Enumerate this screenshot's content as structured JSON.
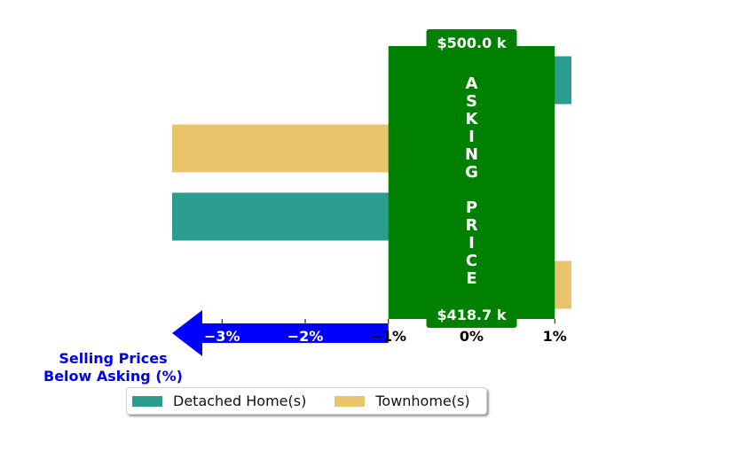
{
  "colors": {
    "detached": "#2a9d8f",
    "townhome": "#e9c46a",
    "asking_box": "#008000",
    "arrow": "#0000ff",
    "annotation_text": "#0000ee"
  },
  "chart_data": {
    "type": "bar",
    "orientation": "horizontal",
    "categories": [
      "",
      "",
      "",
      ""
    ],
    "series": [
      {
        "name": "Detached Home(s)",
        "values": [
          1.2,
          null,
          -3.6,
          null
        ]
      },
      {
        "name": "Townhome(s)",
        "values": [
          null,
          -3.6,
          null,
          1.2
        ]
      }
    ],
    "xlim": [
      -3.6,
      1.2
    ],
    "xticks": [
      -3,
      -2,
      -1,
      0,
      1
    ],
    "xtick_labels": [
      "−3%",
      "−2%",
      "−1%",
      "0%",
      "1%"
    ],
    "xlabel_lines": [
      "Selling Prices",
      "Below Asking (%)"
    ],
    "asking_box": {
      "letters": [
        "A",
        "S",
        "K",
        "I",
        "N",
        "G",
        "",
        "P",
        "R",
        "I",
        "C",
        "E"
      ],
      "top_label": "$500.0 k",
      "bottom_label": "$418.7 k",
      "x_from": -1,
      "x_to": 1
    },
    "legend": {
      "position": "bottom",
      "entries": [
        "Detached Home(s)",
        "Townhome(s)"
      ]
    }
  }
}
